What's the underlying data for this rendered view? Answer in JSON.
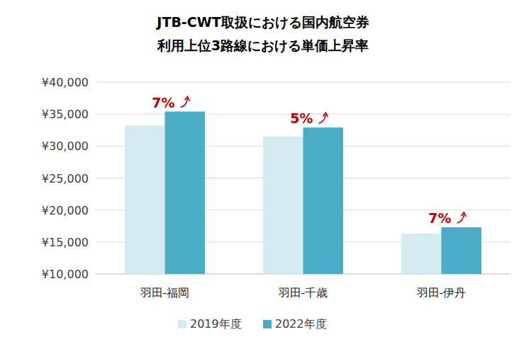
{
  "chart_data": {
    "type": "bar",
    "title": "JTB-CWT取扱における国内航空券\n利用上位3路線における単価上昇率",
    "categories": [
      "羽田-福岡",
      "羽田-千歳",
      "羽田-伊丹"
    ],
    "series": [
      {
        "name": "2019年度",
        "color": "#d4ebf2",
        "values": [
          33200,
          31500,
          16300
        ]
      },
      {
        "name": "2022年度",
        "color": "#4bacc6",
        "values": [
          35400,
          32900,
          17300
        ]
      }
    ],
    "annotations": [
      "7%",
      "5%",
      "7%"
    ],
    "ylim": [
      10000,
      40000
    ],
    "yticks": [
      {
        "value": 10000,
        "label": "¥10,000"
      },
      {
        "value": 15000,
        "label": "¥15,000"
      },
      {
        "value": 20000,
        "label": "¥20,000"
      },
      {
        "value": 25000,
        "label": "¥25,000"
      },
      {
        "value": 30000,
        "label": "¥30,000"
      },
      {
        "value": 35000,
        "label": "¥35,000"
      },
      {
        "value": 40000,
        "label": "¥40,000"
      }
    ],
    "grid": true,
    "legend": "bottom"
  }
}
